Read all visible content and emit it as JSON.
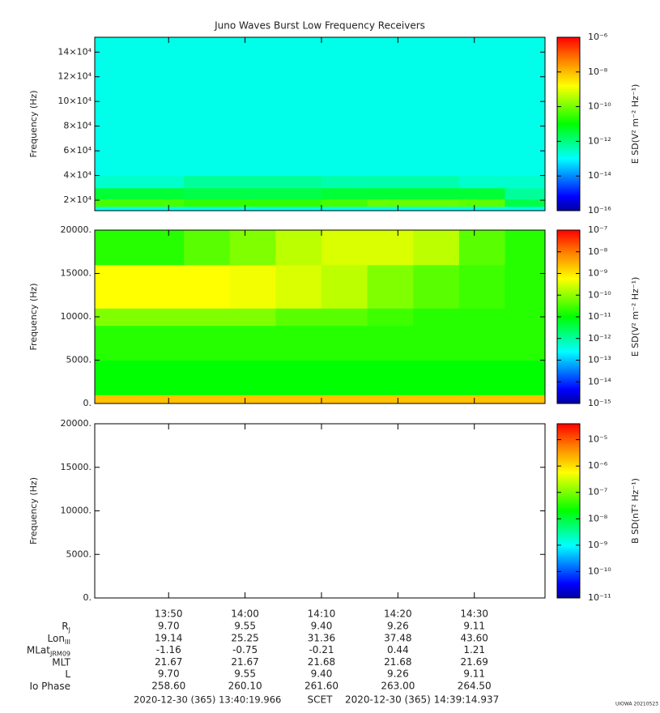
{
  "title": "Juno Waves Burst Low Frequency Receivers",
  "time_axis": {
    "xlim": [
      820.333,
      879.249
    ],
    "xticks": [
      {
        "value": 830,
        "label": "13:50"
      },
      {
        "value": 840,
        "label": "14:00"
      },
      {
        "value": 850,
        "label": "14:10"
      },
      {
        "value": 860,
        "label": "14:20"
      },
      {
        "value": 870,
        "label": "14:30"
      }
    ]
  },
  "chart_data": [
    {
      "type": "heatmap",
      "ylabel": "Frequency (Hz)",
      "colorbar_label": "E SD(V² m⁻² Hz⁻¹)",
      "ylim": [
        11500,
        152000
      ],
      "yticks": [
        {
          "value": 20000,
          "label": "2×10⁴"
        },
        {
          "value": 40000,
          "label": "4×10⁴"
        },
        {
          "value": 60000,
          "label": "6×10⁴"
        },
        {
          "value": 80000,
          "label": "8×10⁴"
        },
        {
          "value": 100000,
          "label": "10×10⁴"
        },
        {
          "value": 120000,
          "label": "12×10⁴"
        },
        {
          "value": 140000,
          "label": "14×10⁴"
        }
      ],
      "zlim": [
        1e-16,
        1e-06
      ],
      "log_z": true,
      "zticks": [
        {
          "value": 1e-16,
          "label": "10⁻¹⁶"
        },
        {
          "value": 1e-14,
          "label": "10⁻¹⁴"
        },
        {
          "value": 1e-12,
          "label": "10⁻¹²"
        },
        {
          "value": 1e-10,
          "label": "10⁻¹⁰"
        },
        {
          "value": 1e-08,
          "label": "10⁻⁸"
        },
        {
          "value": 1e-06,
          "label": "10⁻⁶"
        }
      ],
      "x_edges": [
        820.333,
        826,
        832,
        838,
        844,
        850,
        856,
        862,
        868,
        874,
        879.249
      ],
      "y_edges": [
        11500,
        15000,
        21000,
        30000,
        40000,
        152000
      ],
      "z": [
        [
          5e-14,
          5e-14,
          5e-14,
          5e-14,
          5e-14,
          5e-14,
          5e-14,
          5e-14,
          5e-14,
          5e-14
        ],
        [
          5e-11,
          5e-11,
          3e-11,
          3e-11,
          3e-11,
          5e-11,
          1e-10,
          1e-10,
          8e-11,
          2e-12
        ],
        [
          3e-12,
          3e-12,
          2e-12,
          2e-12,
          2e-12,
          3e-12,
          3e-12,
          3e-12,
          3e-12,
          3e-13
        ],
        [
          1e-13,
          1e-13,
          3e-13,
          3e-13,
          3e-13,
          2e-13,
          2e-13,
          2e-13,
          1e-13,
          1e-13
        ],
        [
          5e-14,
          5e-14,
          5e-14,
          5e-14,
          5e-14,
          5e-14,
          5e-14,
          5e-14,
          5e-14,
          5e-14
        ]
      ]
    },
    {
      "type": "heatmap",
      "ylabel": "Frequency (Hz)",
      "colorbar_label": "E SD(V² m⁻² Hz⁻¹)",
      "ylim": [
        0,
        20000
      ],
      "yticks": [
        {
          "value": 0,
          "label": "0."
        },
        {
          "value": 5000,
          "label": "5000."
        },
        {
          "value": 10000,
          "label": "10000."
        },
        {
          "value": 15000,
          "label": "15000."
        },
        {
          "value": 20000,
          "label": "20000."
        }
      ],
      "zlim": [
        1e-15,
        1e-07
      ],
      "log_z": true,
      "zticks": [
        {
          "value": 1e-15,
          "label": "10⁻¹⁵"
        },
        {
          "value": 1e-14,
          "label": "10⁻¹⁴"
        },
        {
          "value": 1e-13,
          "label": "10⁻¹³"
        },
        {
          "value": 1e-12,
          "label": "10⁻¹²"
        },
        {
          "value": 1e-11,
          "label": "10⁻¹¹"
        },
        {
          "value": 1e-10,
          "label": "10⁻¹⁰"
        },
        {
          "value": 1e-09,
          "label": "10⁻⁹"
        },
        {
          "value": 1e-08,
          "label": "10⁻⁸"
        },
        {
          "value": 1e-07,
          "label": "10⁻⁷"
        }
      ],
      "x_edges": [
        820.333,
        826,
        832,
        838,
        844,
        850,
        856,
        862,
        868,
        874,
        879.249
      ],
      "y_edges": [
        0,
        1000,
        5000,
        9000,
        11000,
        16000,
        20000
      ],
      "z": [
        [
          3e-09,
          3e-09,
          3e-09,
          3e-09,
          3e-09,
          3e-09,
          3e-09,
          3e-09,
          3e-09,
          3e-09
        ],
        [
          1e-11,
          1e-11,
          1e-11,
          1e-11,
          1e-11,
          1e-11,
          1e-11,
          1e-11,
          1e-11,
          1e-11
        ],
        [
          2e-11,
          2e-11,
          2e-11,
          2e-11,
          2e-11,
          2e-11,
          2e-11,
          2e-11,
          2e-11,
          2e-11
        ],
        [
          1e-10,
          1e-10,
          1e-10,
          1e-10,
          5e-11,
          5e-11,
          3e-11,
          2e-11,
          2e-11,
          2e-11
        ],
        [
          1e-09,
          1e-09,
          1e-09,
          8e-10,
          5e-10,
          3e-10,
          1e-10,
          5e-11,
          3e-11,
          2e-11
        ],
        [
          2e-11,
          2e-11,
          5e-11,
          1e-10,
          3e-10,
          5e-10,
          5e-10,
          3e-10,
          5e-11,
          2e-11
        ]
      ]
    },
    {
      "type": "heatmap",
      "ylabel": "Frequency (Hz)",
      "colorbar_label": "B SD(nT² Hz⁻¹)",
      "ylim": [
        0,
        20000
      ],
      "yticks": [
        {
          "value": 0,
          "label": "0."
        },
        {
          "value": 5000,
          "label": "5000."
        },
        {
          "value": 10000,
          "label": "10000."
        },
        {
          "value": 15000,
          "label": "15000."
        },
        {
          "value": 20000,
          "label": "20000."
        }
      ],
      "zlim": [
        1e-11,
        4e-05
      ],
      "log_z": true,
      "zticks": [
        {
          "value": 1e-11,
          "label": "10⁻¹¹"
        },
        {
          "value": 1e-10,
          "label": "10⁻¹⁰"
        },
        {
          "value": 1e-09,
          "label": "10⁻⁹"
        },
        {
          "value": 1e-08,
          "label": "10⁻⁸"
        },
        {
          "value": 1e-07,
          "label": "10⁻⁷"
        },
        {
          "value": 1e-06,
          "label": "10⁻⁶"
        },
        {
          "value": 1e-05,
          "label": "10⁻⁵"
        }
      ]
    }
  ],
  "ephemeris": {
    "labels": [
      {
        "text": "R",
        "sub": "J"
      },
      {
        "text": "Lon",
        "sub": "III"
      },
      {
        "text": "MLat",
        "sub": "JRM09"
      },
      {
        "text": "MLT"
      },
      {
        "text": "L"
      },
      {
        "text": "Io Phase"
      }
    ],
    "rows": [
      [
        "9.70",
        "9.55",
        "9.40",
        "9.26",
        "9.11"
      ],
      [
        "19.14",
        "25.25",
        "31.36",
        "37.48",
        "43.60"
      ],
      [
        "-1.16",
        "-0.75",
        "-0.21",
        "0.44",
        "1.21"
      ],
      [
        "21.67",
        "21.67",
        "21.68",
        "21.68",
        "21.69"
      ],
      [
        "9.70",
        "9.55",
        "9.40",
        "9.26",
        "9.11"
      ],
      [
        "258.60",
        "260.10",
        "261.60",
        "263.00",
        "264.50"
      ]
    ]
  },
  "footer": {
    "start": "2020-12-30 (365) 13:40:19.966",
    "center": "SCET",
    "end": "2020-12-30 (365) 14:39:14.937",
    "credit": "UIOWA 20210523"
  }
}
